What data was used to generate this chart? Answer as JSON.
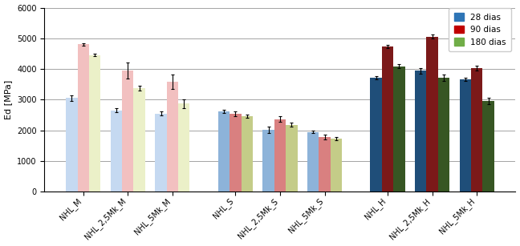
{
  "categories": [
    "NHL_M",
    "NHL_2,5Mk_M",
    "NHL_5Mk_M",
    "NHL_S",
    "NHL_2,5Mk_S",
    "NHL_5Mk_S",
    "NHL_H",
    "NHL_2,5Mk_H",
    "NHL_5Mk_H"
  ],
  "series": {
    "28 dias": [
      3050,
      2650,
      2550,
      2620,
      2020,
      1950,
      3720,
      3940,
      3660
    ],
    "90 dias": [
      4800,
      3950,
      3580,
      2540,
      2360,
      1780,
      4730,
      5060,
      4020
    ],
    "180 dias": [
      4460,
      3380,
      2870,
      2470,
      2180,
      1720,
      4090,
      3720,
      2960
    ]
  },
  "errors": {
    "28 dias": [
      80,
      70,
      60,
      60,
      100,
      50,
      50,
      90,
      60
    ],
    "90 dias": [
      50,
      250,
      230,
      70,
      90,
      70,
      60,
      70,
      80
    ],
    "180 dias": [
      50,
      70,
      140,
      50,
      60,
      50,
      70,
      100,
      110
    ]
  },
  "bar_colors": {
    "M": {
      "28 dias": "#c5d9f1",
      "90 dias": "#f2c0c0",
      "180 dias": "#ebf0c8"
    },
    "S": {
      "28 dias": "#8db3d9",
      "90 dias": "#d98080",
      "180 dias": "#c4cc88"
    },
    "H": {
      "28 dias": "#1f4e79",
      "90 dias": "#7b1919",
      "180 dias": "#375623"
    }
  },
  "legend_colors": [
    "#2e75b6",
    "#c00000",
    "#70ad47"
  ],
  "ylabel": "Ed [MPa]",
  "ylim": [
    0,
    6000
  ],
  "yticks": [
    0,
    1000,
    2000,
    3000,
    4000,
    5000,
    6000
  ],
  "legend_labels": [
    "28 dias",
    "90 dias",
    "180 dias"
  ],
  "bar_width": 0.22,
  "title": ""
}
